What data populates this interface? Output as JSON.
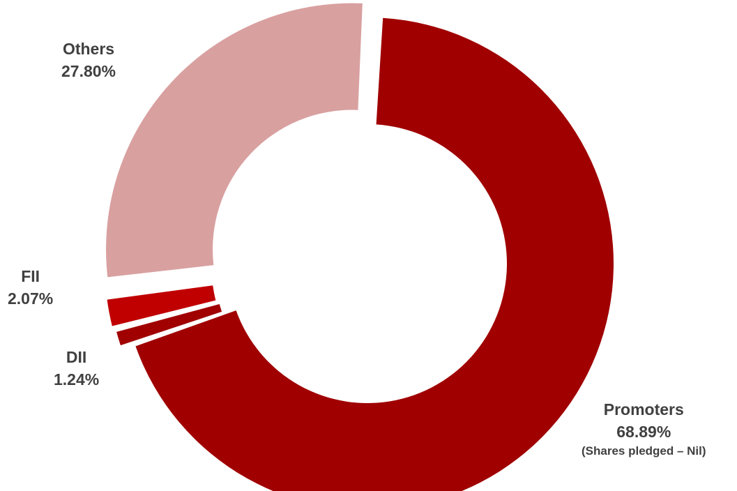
{
  "chart_data": {
    "type": "pie",
    "donut": true,
    "title": "",
    "start_angle_deg": 3,
    "slices": [
      {
        "label": "Promoters",
        "value": 68.89,
        "display_value": "68.89%",
        "note": "(Shares pledged – Nil)",
        "color": "#a00000"
      },
      {
        "label": "DII",
        "value": 1.24,
        "display_value": "1.24%",
        "color": "#a00000"
      },
      {
        "label": "FII",
        "value": 2.07,
        "display_value": "2.07%",
        "color": "#c00000"
      },
      {
        "label": "Others",
        "value": 27.8,
        "display_value": "27.80%",
        "color": "#d9a0a0"
      }
    ]
  }
}
